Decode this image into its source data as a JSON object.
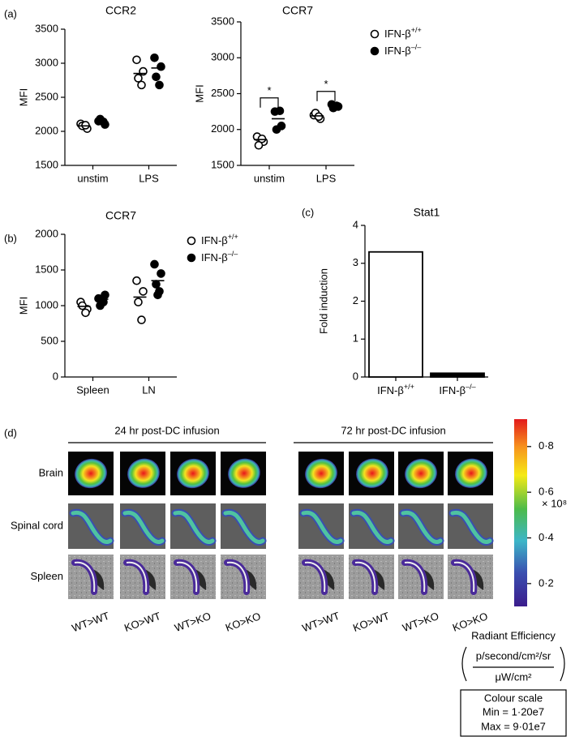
{
  "chart_data": [
    {
      "type": "dot",
      "panel": "(a)",
      "title": "CCR2",
      "ylabel": "MFI",
      "categories": [
        "unstim",
        "LPS"
      ],
      "ylim": [
        1500,
        3500
      ],
      "yticks": [
        1500,
        2000,
        2500,
        3000,
        3500
      ],
      "series": [
        {
          "marker": "open",
          "color": "#000000",
          "values": [
            [
              2110,
              2040,
              2080,
              2090
            ],
            [
              3050,
              2880,
              2780,
              2680
            ]
          ],
          "means": [
            2080,
            2850
          ]
        },
        {
          "marker": "filled",
          "color": "#000000",
          "values": [
            [
              2150,
              2100,
              2180,
              2140
            ],
            [
              3080,
              2950,
              2800,
              2680
            ]
          ],
          "means": [
            2140,
            2930
          ]
        }
      ]
    },
    {
      "type": "dot",
      "title": "CCR7",
      "ylabel": "MFI",
      "categories": [
        "unstim",
        "LPS"
      ],
      "ylim": [
        1500,
        3500
      ],
      "yticks": [
        1500,
        2000,
        2500,
        3000,
        3500
      ],
      "legend": "outside-right",
      "series": [
        {
          "name": "IFN-β+/+",
          "marker": "open",
          "color": "#000000",
          "values": [
            [
              1900,
              1830,
              1780,
              1870
            ],
            [
              2200,
              2150,
              2230,
              2180
            ]
          ],
          "means": [
            1860,
            2190
          ]
        },
        {
          "name": "IFN-β–/–",
          "marker": "filled",
          "color": "#000000",
          "values": [
            [
              2250,
              2050,
              2000,
              2260
            ],
            [
              2350,
              2320,
              2300,
              2330
            ]
          ],
          "means": [
            2150,
            2330
          ]
        }
      ],
      "annotations": [
        {
          "text": "*",
          "category": 0
        },
        {
          "text": "*",
          "category": 1
        }
      ]
    },
    {
      "type": "dot",
      "panel": "(b)",
      "title": "CCR7",
      "ylabel": "MFI",
      "categories": [
        "Spleen",
        "LN"
      ],
      "ylim": [
        0,
        2000
      ],
      "yticks": [
        0,
        500,
        1000,
        1500,
        2000
      ],
      "legend": "outside-right",
      "series": [
        {
          "name": "IFN-β+/+",
          "marker": "open",
          "color": "#000000",
          "values": [
            [
              1050,
              950,
              1000,
              900
            ],
            [
              1350,
              1200,
              1050,
              800
            ]
          ],
          "means": [
            990,
            1120
          ]
        },
        {
          "name": "IFN-β–/–",
          "marker": "filled",
          "color": "#000000",
          "values": [
            [
              1100,
              1150,
              1000,
              1050
            ],
            [
              1580,
              1450,
              1300,
              1200,
              1150
            ]
          ],
          "means": [
            1090,
            1350
          ]
        }
      ]
    },
    {
      "type": "bar",
      "panel": "(c)",
      "title": "Stat1",
      "ylabel": "Fold induction",
      "categories": [
        "IFN-β+/+",
        "IFN-β–/–"
      ],
      "values": [
        3.3,
        0.1
      ],
      "colors": [
        "#ffffff",
        "#000000"
      ],
      "ylim": [
        0,
        4
      ],
      "yticks": [
        0,
        1,
        2,
        3,
        4
      ]
    }
  ],
  "imaging_panel": {
    "panel": "(d)",
    "groups": [
      "24 hr post-DC infusion",
      "72 hr post-DC infusion"
    ],
    "rows": [
      "Brain",
      "Spinal cord",
      "Spleen"
    ],
    "columns": [
      [
        "WT>WT",
        "KO>WT",
        "WT>KO",
        "KO>KO"
      ],
      [
        "WT>WT",
        "KO>WT",
        "WT>KO",
        "KO>KO"
      ]
    ],
    "colorbar": {
      "ylim": [
        0.1,
        0.92
      ],
      "ticks": [
        {
          "value": 0.2,
          "label": "0·2"
        },
        {
          "value": 0.4,
          "label": "0·4"
        },
        {
          "value": 0.6,
          "label": "0·6"
        },
        {
          "value": 0.8,
          "label": "0·8"
        }
      ],
      "multiplier": "× 10⁸",
      "title": "Radiant Efficiency",
      "numerator": "p/second/cm²/sr",
      "denominator": "μW/cm²"
    },
    "colour_scale": {
      "title": "Colour scale",
      "min": "Min = 1·20e7",
      "max": "Max = 9·01e7"
    }
  }
}
